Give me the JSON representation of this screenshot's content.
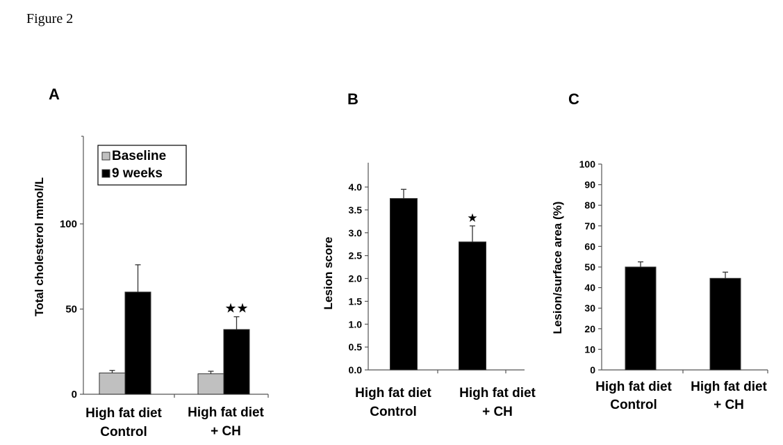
{
  "figure_title": "Figure 2",
  "chart_data": [
    {
      "panel": "A",
      "type": "bar",
      "categories": [
        [
          "High fat diet",
          "Control"
        ],
        [
          "High fat diet",
          "+ CH"
        ]
      ],
      "series": [
        {
          "name": "Baseline",
          "color": "#c0c0c0",
          "values": [
            12.5,
            12.0
          ],
          "errors": [
            1.5,
            1.5
          ]
        },
        {
          "name": "9 weeks",
          "color": "#000000",
          "values": [
            60,
            38
          ],
          "errors": [
            16,
            7.5
          ]
        }
      ],
      "ylabel": "Total cholesterol mmol/L",
      "yticks": [
        0,
        50,
        100
      ],
      "ylim": [
        0,
        150
      ],
      "annotations": [
        {
          "text": "★★",
          "category": 1
        }
      ],
      "legend": "top-left",
      "grid": false
    },
    {
      "panel": "B",
      "type": "bar",
      "categories": [
        [
          "High fat diet",
          "Control"
        ],
        [
          "High fat diet",
          "+ CH"
        ]
      ],
      "series": [
        {
          "color": "#000000",
          "values": [
            3.75,
            2.8
          ],
          "errors": [
            0.2,
            0.35
          ]
        }
      ],
      "ylabel": "Lesion score",
      "yticks": [
        "0.0",
        "0.5",
        "1.0",
        "1.5",
        "2.0",
        "2.5",
        "3.0",
        "3.5",
        "4.0"
      ],
      "ylim": [
        0,
        4.5
      ],
      "annotations": [
        {
          "text": "★",
          "category": 1
        }
      ],
      "grid": false
    },
    {
      "panel": "C",
      "type": "bar",
      "categories": [
        [
          "High fat diet",
          "Control"
        ],
        [
          "High fat diet",
          "+ CH"
        ]
      ],
      "series": [
        {
          "color": "#000000",
          "values": [
            50,
            44.5
          ],
          "errors": [
            2.5,
            3.0
          ]
        }
      ],
      "ylabel": "Lesion/surface area (%)",
      "yticks": [
        0,
        10,
        20,
        30,
        40,
        50,
        60,
        70,
        80,
        90,
        100
      ],
      "ylim": [
        0,
        100
      ],
      "grid": false
    }
  ]
}
